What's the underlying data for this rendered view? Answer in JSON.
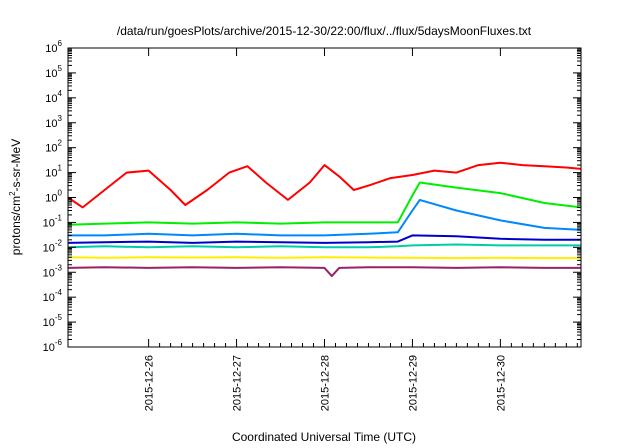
{
  "chart_data": {
    "type": "line",
    "title": "/data/run/goesPlots/archive/2015-12-30/22:00/flux/../flux/5daysMoonFluxes.txt",
    "xlabel": "Coordinated Universal Time (UTC)",
    "ylabel": {
      "prefix": "protons/cm",
      "sup": "2",
      "suffix": "-s-sr-MeV"
    },
    "yscale": "log",
    "ylim": [
      1e-06,
      1000000.0
    ],
    "ytick_labels": [
      {
        "base": "10",
        "exp": "-6"
      },
      {
        "base": "10",
        "exp": "-5"
      },
      {
        "base": "10",
        "exp": "-4"
      },
      {
        "base": "10",
        "exp": "-3"
      },
      {
        "base": "10",
        "exp": "-2"
      },
      {
        "base": "10",
        "exp": "-1"
      },
      {
        "base": "10",
        "exp": "0"
      },
      {
        "base": "10",
        "exp": "1"
      },
      {
        "base": "10",
        "exp": "2"
      },
      {
        "base": "10",
        "exp": "3"
      },
      {
        "base": "10",
        "exp": "4"
      },
      {
        "base": "10",
        "exp": "5"
      },
      {
        "base": "10",
        "exp": "6"
      }
    ],
    "xlim": [
      "2015-12-25 02:00",
      "2015-12-30 22:00"
    ],
    "xtick_labels": [
      "2015-12-26",
      "2015-12-27",
      "2015-12-28",
      "2015-12-29",
      "2015-12-30"
    ],
    "grid": false,
    "legend": "none",
    "series": [
      {
        "color": "#ff0000",
        "points": [
          [
            "2015-12-25 02:00",
            1.0
          ],
          [
            "2015-12-25 06:00",
            0.4
          ],
          [
            "2015-12-25 12:00",
            2.0
          ],
          [
            "2015-12-25 18:00",
            10.0
          ],
          [
            "2015-12-26 00:00",
            12.0
          ],
          [
            "2015-12-26 06:00",
            2.0
          ],
          [
            "2015-12-26 10:00",
            0.5
          ],
          [
            "2015-12-26 16:00",
            2.0
          ],
          [
            "2015-12-26 22:00",
            10.0
          ],
          [
            "2015-12-27 03:00",
            18.0
          ],
          [
            "2015-12-27 08:00",
            4.0
          ],
          [
            "2015-12-27 14:00",
            0.8
          ],
          [
            "2015-12-27 20:00",
            4.0
          ],
          [
            "2015-12-28 00:00",
            20.0
          ],
          [
            "2015-12-28 04:00",
            7.0
          ],
          [
            "2015-12-28 08:00",
            2.0
          ],
          [
            "2015-12-28 12:00",
            3.0
          ],
          [
            "2015-12-28 18:00",
            6.0
          ],
          [
            "2015-12-29 00:00",
            8.0
          ],
          [
            "2015-12-29 06:00",
            12.0
          ],
          [
            "2015-12-29 12:00",
            10.0
          ],
          [
            "2015-12-29 18:00",
            20.0
          ],
          [
            "2015-12-30 00:00",
            25.0
          ],
          [
            "2015-12-30 06:00",
            20.0
          ],
          [
            "2015-12-30 12:00",
            18.0
          ],
          [
            "2015-12-30 18:00",
            16.0
          ],
          [
            "2015-12-30 22:00",
            14.0
          ]
        ]
      },
      {
        "color": "#00ee00",
        "points": [
          [
            "2015-12-25 02:00",
            0.08
          ],
          [
            "2015-12-25 12:00",
            0.09
          ],
          [
            "2015-12-26 00:00",
            0.1
          ],
          [
            "2015-12-26 12:00",
            0.09
          ],
          [
            "2015-12-27 00:00",
            0.1
          ],
          [
            "2015-12-27 12:00",
            0.09
          ],
          [
            "2015-12-28 00:00",
            0.1
          ],
          [
            "2015-12-28 12:00",
            0.1
          ],
          [
            "2015-12-28 20:00",
            0.1
          ],
          [
            "2015-12-29 00:00",
            1.2
          ],
          [
            "2015-12-29 02:00",
            4.0
          ],
          [
            "2015-12-29 12:00",
            2.5
          ],
          [
            "2015-12-30 00:00",
            1.5
          ],
          [
            "2015-12-30 12:00",
            0.6
          ],
          [
            "2015-12-30 22:00",
            0.4
          ]
        ]
      },
      {
        "color": "#0088ff",
        "points": [
          [
            "2015-12-25 02:00",
            0.03
          ],
          [
            "2015-12-25 12:00",
            0.03
          ],
          [
            "2015-12-26 00:00",
            0.035
          ],
          [
            "2015-12-26 12:00",
            0.03
          ],
          [
            "2015-12-27 00:00",
            0.035
          ],
          [
            "2015-12-27 12:00",
            0.03
          ],
          [
            "2015-12-28 00:00",
            0.03
          ],
          [
            "2015-12-28 12:00",
            0.035
          ],
          [
            "2015-12-28 20:00",
            0.04
          ],
          [
            "2015-12-29 00:00",
            0.3
          ],
          [
            "2015-12-29 02:00",
            0.8
          ],
          [
            "2015-12-29 12:00",
            0.3
          ],
          [
            "2015-12-30 00:00",
            0.12
          ],
          [
            "2015-12-30 12:00",
            0.06
          ],
          [
            "2015-12-30 22:00",
            0.05
          ]
        ]
      },
      {
        "color": "#0000cc",
        "points": [
          [
            "2015-12-25 02:00",
            0.015
          ],
          [
            "2015-12-25 12:00",
            0.016
          ],
          [
            "2015-12-26 00:00",
            0.017
          ],
          [
            "2015-12-26 12:00",
            0.015
          ],
          [
            "2015-12-27 00:00",
            0.017
          ],
          [
            "2015-12-27 12:00",
            0.016
          ],
          [
            "2015-12-28 00:00",
            0.015
          ],
          [
            "2015-12-28 12:00",
            0.016
          ],
          [
            "2015-12-28 20:00",
            0.017
          ],
          [
            "2015-12-29 00:00",
            0.03
          ],
          [
            "2015-12-29 12:00",
            0.028
          ],
          [
            "2015-12-30 00:00",
            0.022
          ],
          [
            "2015-12-30 12:00",
            0.02
          ],
          [
            "2015-12-30 22:00",
            0.02
          ]
        ]
      },
      {
        "color": "#00ccaa",
        "points": [
          [
            "2015-12-25 02:00",
            0.01
          ],
          [
            "2015-12-25 12:00",
            0.011
          ],
          [
            "2015-12-26 00:00",
            0.01
          ],
          [
            "2015-12-26 12:00",
            0.011
          ],
          [
            "2015-12-27 00:00",
            0.01
          ],
          [
            "2015-12-27 12:00",
            0.011
          ],
          [
            "2015-12-28 00:00",
            0.01
          ],
          [
            "2015-12-28 12:00",
            0.01
          ],
          [
            "2015-12-28 20:00",
            0.011
          ],
          [
            "2015-12-29 00:00",
            0.012
          ],
          [
            "2015-12-29 12:00",
            0.013
          ],
          [
            "2015-12-30 00:00",
            0.012
          ],
          [
            "2015-12-30 12:00",
            0.012
          ],
          [
            "2015-12-30 22:00",
            0.012
          ]
        ]
      },
      {
        "color": "#ffee00",
        "points": [
          [
            "2015-12-25 02:00",
            0.004
          ],
          [
            "2015-12-25 12:00",
            0.0038
          ],
          [
            "2015-12-26 00:00",
            0.004
          ],
          [
            "2015-12-26 12:00",
            0.0039
          ],
          [
            "2015-12-27 00:00",
            0.004
          ],
          [
            "2015-12-27 12:00",
            0.0038
          ],
          [
            "2015-12-28 00:00",
            0.004
          ],
          [
            "2015-12-28 12:00",
            0.0039
          ],
          [
            "2015-12-29 00:00",
            0.0038
          ],
          [
            "2015-12-29 12:00",
            0.0037
          ],
          [
            "2015-12-30 00:00",
            0.0038
          ],
          [
            "2015-12-30 12:00",
            0.0037
          ],
          [
            "2015-12-30 22:00",
            0.0037
          ]
        ]
      },
      {
        "color": "#992266",
        "points": [
          [
            "2015-12-25 02:00",
            0.0015
          ],
          [
            "2015-12-25 12:00",
            0.0016
          ],
          [
            "2015-12-26 00:00",
            0.0015
          ],
          [
            "2015-12-26 12:00",
            0.0016
          ],
          [
            "2015-12-27 00:00",
            0.0015
          ],
          [
            "2015-12-27 12:00",
            0.0016
          ],
          [
            "2015-12-28 00:00",
            0.0015
          ],
          [
            "2015-12-28 02:00",
            0.0007
          ],
          [
            "2015-12-28 04:00",
            0.0015
          ],
          [
            "2015-12-28 12:00",
            0.0016
          ],
          [
            "2015-12-29 00:00",
            0.0016
          ],
          [
            "2015-12-29 12:00",
            0.0015
          ],
          [
            "2015-12-30 00:00",
            0.0016
          ],
          [
            "2015-12-30 12:00",
            0.0015
          ],
          [
            "2015-12-30 22:00",
            0.0015
          ]
        ]
      }
    ]
  }
}
